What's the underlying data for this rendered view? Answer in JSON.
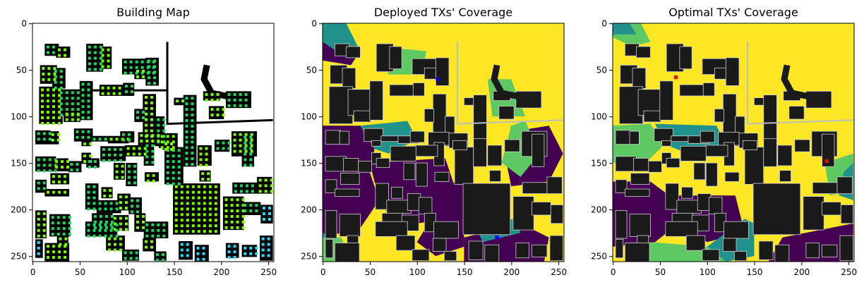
{
  "chart_data": [
    {
      "type": "heatmap",
      "title": "Building Map",
      "xlim": [
        0,
        255
      ],
      "ylim": [
        255,
        0
      ],
      "xticks": [
        0,
        50,
        100,
        150,
        200,
        250
      ],
      "yticks": [
        0,
        50,
        100,
        150,
        200,
        250
      ],
      "background_color": "#ffffff",
      "building_color": "#000000",
      "marker_colors": [
        "#7cfc00",
        "#1ed760",
        "#29d8ff"
      ]
    },
    {
      "type": "heatmap",
      "title": "Deployed TXs' Coverage",
      "xlim": [
        0,
        255
      ],
      "ylim": [
        255,
        0
      ],
      "xticks": [
        0,
        50,
        100,
        150,
        200,
        250
      ],
      "yticks": [
        0,
        50,
        100,
        150,
        200,
        250
      ],
      "colormap": [
        "#440154",
        "#21918c",
        "#5ec962",
        "#fde725"
      ],
      "building_color": "#1a1a1a",
      "tx_color": "#0000ff",
      "tx_locations": [
        {
          "x": 122,
          "y": 60
        },
        {
          "x": 185,
          "y": 230
        }
      ]
    },
    {
      "type": "heatmap",
      "title": "Optimal TXs' Coverage",
      "xlim": [
        0,
        255
      ],
      "ylim": [
        255,
        0
      ],
      "xticks": [
        0,
        50,
        100,
        150,
        200,
        250
      ],
      "yticks": [
        0,
        50,
        100,
        150,
        200,
        250
      ],
      "colormap": [
        "#440154",
        "#21918c",
        "#5ec962",
        "#fde725"
      ],
      "building_color": "#1a1a1a",
      "tx_color": "#ff0000",
      "tx_locations": [
        {
          "x": 67,
          "y": 58
        },
        {
          "x": 227,
          "y": 148
        }
      ]
    }
  ]
}
